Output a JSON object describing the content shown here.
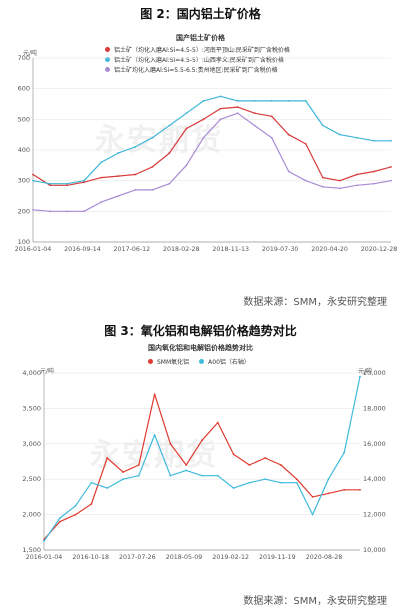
{
  "figure2": {
    "caption": "图 2：国内铝土矿价格",
    "source": "数据来源：SMM，永安研究整理",
    "chart_data": {
      "type": "line",
      "title": "国产铝土矿价格",
      "ylabel": "元/吨",
      "ylim": [
        100,
        700
      ],
      "yticks": [
        100,
        200,
        300,
        400,
        500,
        600,
        700
      ],
      "xticks": [
        "2016-01-04",
        "2016-09-14",
        "2017-06-12",
        "2018-02-28",
        "2018-11-13",
        "2019-07-30",
        "2020-04-20",
        "2020-12-28"
      ],
      "x": [
        "2016-01",
        "2016-04",
        "2016-07",
        "2016-10",
        "2017-01",
        "2017-04",
        "2017-07",
        "2017-10",
        "2018-01",
        "2018-04",
        "2018-07",
        "2018-10",
        "2019-01",
        "2019-04",
        "2019-07",
        "2019-10",
        "2020-01",
        "2020-04",
        "2020-07",
        "2020-10",
        "2021-01",
        "2021-04"
      ],
      "series": [
        {
          "name": "铝土矿（均化入磨Al:Si=4.5-5）:河南平顶山:民采矿到厂含税价格",
          "color": "#d93a3a",
          "values": [
            320,
            285,
            285,
            295,
            310,
            315,
            320,
            345,
            390,
            470,
            500,
            535,
            540,
            520,
            510,
            450,
            420,
            310,
            300,
            320,
            330,
            345
          ]
        },
        {
          "name": "铝土矿（均化入磨Al:Si=4.5-5）:山西孝义:民采矿到厂含税价格",
          "color": "#3fb6d8",
          "values": [
            300,
            290,
            290,
            300,
            360,
            390,
            410,
            440,
            480,
            520,
            560,
            575,
            560,
            560,
            560,
            560,
            560,
            480,
            450,
            440,
            430,
            430
          ]
        },
        {
          "name": "铝土矿均化入磨Al:Si=5.5-6.5:贵州地区:民采矿到厂含税价格",
          "color": "#a98bd4",
          "values": [
            205,
            200,
            200,
            200,
            230,
            250,
            270,
            270,
            290,
            350,
            440,
            500,
            520,
            480,
            440,
            330,
            300,
            280,
            275,
            285,
            290,
            300
          ]
        }
      ],
      "legend": "top-left",
      "grid": true
    }
  },
  "figure3": {
    "caption": "图 3：氧化铝和电解铝价格趋势对比",
    "source": "数据来源：SMM，永安研究整理",
    "chart_data": {
      "type": "line",
      "title": "国内氧化铝和电解铝价格趋势对比",
      "ylabel": "元/吨",
      "ylabel_right": "元/吨",
      "ylim": [
        1500,
        4000
      ],
      "yticks": [
        "1,500",
        "2,000",
        "2,500",
        "3,000",
        "3,500",
        "4,000"
      ],
      "ylim_right": [
        10000,
        20000
      ],
      "yticks_right": [
        "10,000",
        "12,000",
        "14,000",
        "16,000",
        "18,000",
        "20,000"
      ],
      "xticks": [
        "2016-01-04",
        "2016-10-18",
        "2017-07-26",
        "2018-05-09",
        "2019-02-12",
        "2019-11-19",
        "2020-08-28"
      ],
      "x": [
        "2016-01",
        "2016-04",
        "2016-07",
        "2016-10",
        "2017-01",
        "2017-04",
        "2017-07",
        "2017-10",
        "2018-01",
        "2018-04",
        "2018-07",
        "2018-10",
        "2019-01",
        "2019-04",
        "2019-07",
        "2019-10",
        "2020-01",
        "2020-04",
        "2020-07",
        "2020-10",
        "2021-01"
      ],
      "series": [
        {
          "name": "SMM氧化铝",
          "axis": "left",
          "color": "#e03a2f",
          "values": [
            1650,
            1900,
            2000,
            2150,
            2800,
            2600,
            2700,
            3700,
            3000,
            2700,
            3050,
            3300,
            2850,
            2700,
            2800,
            2700,
            2500,
            2250,
            2300,
            2350,
            2350
          ]
        },
        {
          "name": "A00铝（右轴）",
          "axis": "right",
          "color": "#3fbadc",
          "values": [
            10500,
            11800,
            12500,
            13800,
            13500,
            14000,
            14200,
            16500,
            14200,
            14500,
            14200,
            14200,
            13500,
            13800,
            14000,
            13800,
            13800,
            12000,
            14000,
            15500,
            19800
          ]
        }
      ],
      "legend": "top-center",
      "grid": true
    }
  }
}
